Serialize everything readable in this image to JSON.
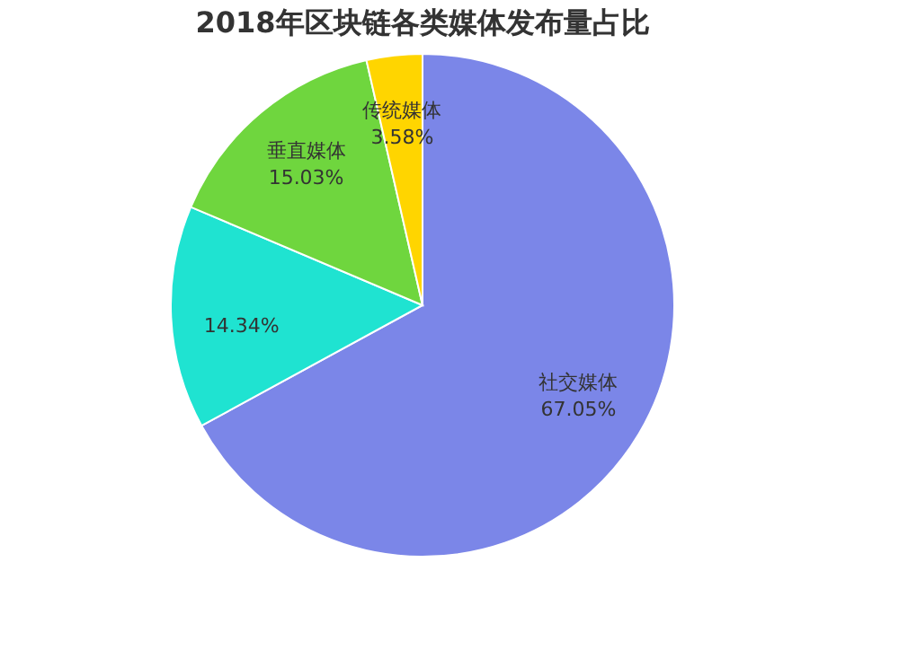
{
  "chart_data": {
    "type": "pie",
    "title": "2018年区块链各类媒体发布量占比",
    "categories": [
      "社交媒体",
      null,
      "垂直媒体",
      "传统媒体"
    ],
    "values": [
      67.05,
      14.34,
      15.03,
      3.58
    ],
    "value_labels": [
      "67.05%",
      "14.34%",
      "15.03%",
      "3.58%"
    ],
    "colors": [
      "#7b86e8",
      "#1fe3d1",
      "#6fd63e",
      "#ffd500"
    ],
    "legend": false
  }
}
